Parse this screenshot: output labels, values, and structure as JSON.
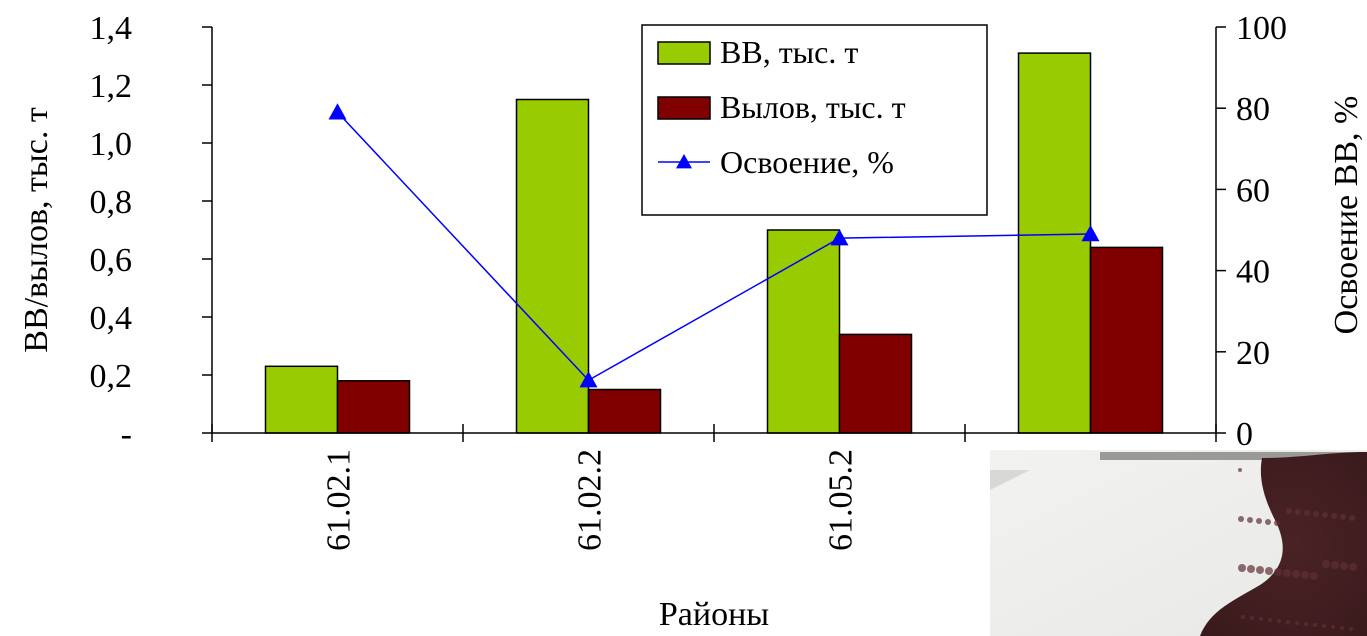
{
  "chart_data": {
    "type": "bar",
    "categories": [
      "61.02.1",
      "61.02.2",
      "61.05.2",
      ""
    ],
    "series": [
      {
        "name": "ВВ, тыс. т",
        "kind": "bar",
        "axis": "left",
        "color": "#99CC00",
        "values": [
          0.23,
          1.15,
          0.7,
          1.31
        ]
      },
      {
        "name": "Вылов, тыс. т",
        "kind": "bar",
        "axis": "left",
        "color": "#800000",
        "values": [
          0.18,
          0.15,
          0.34,
          0.64
        ]
      },
      {
        "name": "Освоение, %",
        "kind": "line",
        "axis": "right",
        "color": "#0000FF",
        "marker": "triangle",
        "values": [
          79,
          13,
          48,
          49
        ]
      }
    ],
    "xlabel": "Районы",
    "ylabel": "ВВ/вылов, тыс. т",
    "y2label": "Освоение ВВ, %",
    "ylim": [
      0,
      1.4
    ],
    "y2lim": [
      0,
      100
    ],
    "yticks": [
      "-",
      "0,2",
      "0,4",
      "0,6",
      "0,8",
      "1,0",
      "1,2",
      "1,4"
    ],
    "y2ticks": [
      "0",
      "20",
      "40",
      "60",
      "80",
      "100"
    ],
    "legend_position": "top-right",
    "grid": false
  },
  "overlay": {
    "description_icon": "photo-fragment",
    "colors": {
      "light": "#E8E8E6",
      "dark": "#3A1A1C"
    }
  }
}
